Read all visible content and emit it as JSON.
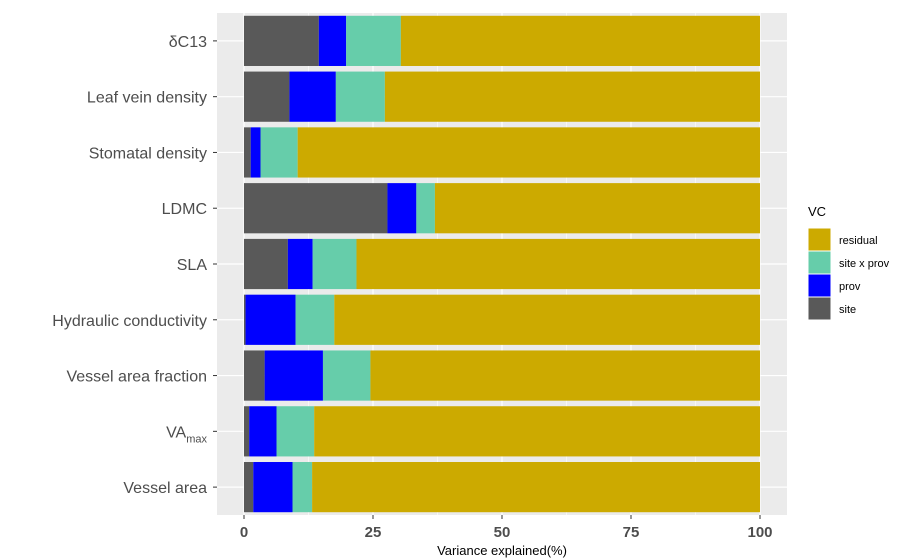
{
  "chart_data": {
    "type": "bar",
    "orientation": "horizontal",
    "stacked": true,
    "xlabel": "Variance explained(%)",
    "ylabel": "",
    "xlim": [
      0,
      100
    ],
    "xticks": [
      "0",
      "25",
      "50",
      "75",
      "100"
    ],
    "grid": true,
    "legend_position": "right",
    "legend_title": "VC",
    "categories": [
      {
        "label": "δC13"
      },
      {
        "label": "Leaf vein density"
      },
      {
        "label": "Stomatal density"
      },
      {
        "label": "LDMC"
      },
      {
        "label": "SLA"
      },
      {
        "label": "Hydraulic conductivity"
      },
      {
        "label": "Vessel area fraction"
      },
      {
        "label": "VA",
        "sub": "max"
      },
      {
        "label": "Vessel area"
      }
    ],
    "series": [
      {
        "name": "site",
        "color": "#595959",
        "values": [
          14.5,
          8.8,
          1.3,
          27.8,
          8.5,
          0.3,
          4.0,
          1.0,
          1.8
        ]
      },
      {
        "name": "prov",
        "color": "#0000ff",
        "values": [
          5.3,
          9.0,
          1.9,
          5.6,
          4.8,
          9.7,
          11.3,
          5.3,
          7.6
        ]
      },
      {
        "name": "site x prov",
        "color": "#66cdaa",
        "values": [
          10.6,
          9.5,
          7.2,
          3.6,
          8.5,
          7.5,
          9.2,
          7.3,
          3.8
        ]
      },
      {
        "name": "residual",
        "color": "#ccaa00",
        "values": [
          69.6,
          72.7,
          89.6,
          63.0,
          78.2,
          82.5,
          75.5,
          86.4,
          86.8
        ]
      }
    ],
    "legend_order": [
      "residual",
      "site x prov",
      "prov",
      "site"
    ]
  }
}
